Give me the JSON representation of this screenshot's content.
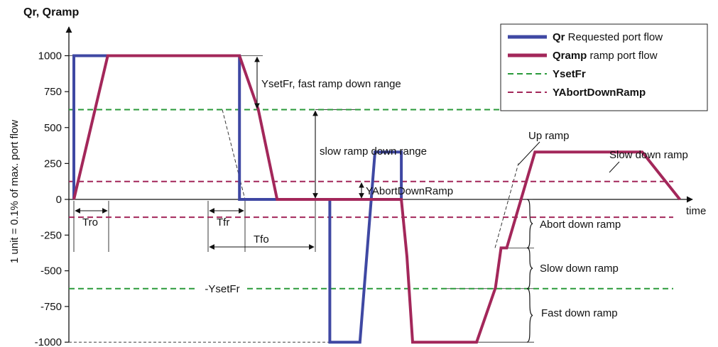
{
  "chart_data": {
    "type": "line",
    "title": "",
    "ylabel_top": "Qr, Qramp",
    "ylabel": "1 unit = 0.1% of max. port flow",
    "xlabel": "time",
    "ylim": [
      -1000,
      1000
    ],
    "yticks": [
      1000,
      750,
      500,
      250,
      0,
      -250,
      -500,
      -750,
      -1000
    ],
    "ytick_labels": [
      "1000",
      "750",
      "500",
      "250",
      "0",
      "-250",
      "-500",
      "-750",
      "-1000"
    ],
    "x_units": "arbitrary time units",
    "legend_position": "top-right",
    "legend": [
      {
        "bold": "Qr",
        "text": " Requested port flow",
        "color": "#3f48a3",
        "style": "solid"
      },
      {
        "bold": "Qramp",
        "text": " ramp port flow",
        "color": "#a3275a",
        "style": "solid"
      },
      {
        "bold": "YsetFr",
        "text": "",
        "color": "#2a9a3a",
        "style": "dashed"
      },
      {
        "bold": "YAbortDownRamp",
        "text": "",
        "color": "#a3275a",
        "style": "dashed"
      }
    ],
    "series": [
      {
        "name": "Qr",
        "color": "#3f48a3",
        "x": [
          0,
          0,
          20,
          20,
          44,
          44,
          54,
          54,
          68,
          68,
          76,
          80,
          80,
          87,
          87
        ],
        "y": [
          0,
          1000,
          1000,
          1000,
          1000,
          0,
          0,
          0,
          0,
          -1000,
          -1000,
          330,
          330,
          330,
          0
        ]
      },
      {
        "name": "Qramp",
        "color": "#a3275a",
        "x": [
          0,
          9,
          44,
          49,
          54,
          80,
          87,
          88.5,
          90,
          96,
          99,
          107,
          112,
          113.5,
          115,
          122.5,
          131,
          151,
          161
        ],
        "y": [
          0,
          1000,
          1000,
          625,
          0,
          0,
          0,
          -400,
          -1000,
          -1000,
          -1000,
          -1000,
          -620,
          -340,
          -340,
          330,
          330,
          330,
          0
        ]
      }
    ],
    "reference_lines": [
      {
        "name": "YsetFr",
        "y": 625,
        "color": "#2a9a3a"
      },
      {
        "name": "-YsetFr",
        "y": -625,
        "color": "#2a9a3a",
        "label": "-YsetFr"
      },
      {
        "name": "YAbortDownRamp",
        "y": 125,
        "color": "#a3275a"
      },
      {
        "name": "-YAbortDownRamp",
        "y": -125,
        "color": "#a3275a"
      }
    ],
    "annotations": {
      "ysetfr_range": "YsetFr, fast ramp down range",
      "slow_range": "slow ramp down range",
      "yabort": "YAbortDownRamp",
      "tro": "Tro",
      "tfr": "Tfr",
      "tfo": "Tfo",
      "up_ramp": "Up ramp",
      "slow_down_ramp_top": "Slow down ramp",
      "abort_down_ramp": "Abort down ramp",
      "slow_down_ramp": "Slow down ramp",
      "fast_down_ramp": "Fast down ramp",
      "neg_ysetfr": "-YsetFr"
    }
  }
}
